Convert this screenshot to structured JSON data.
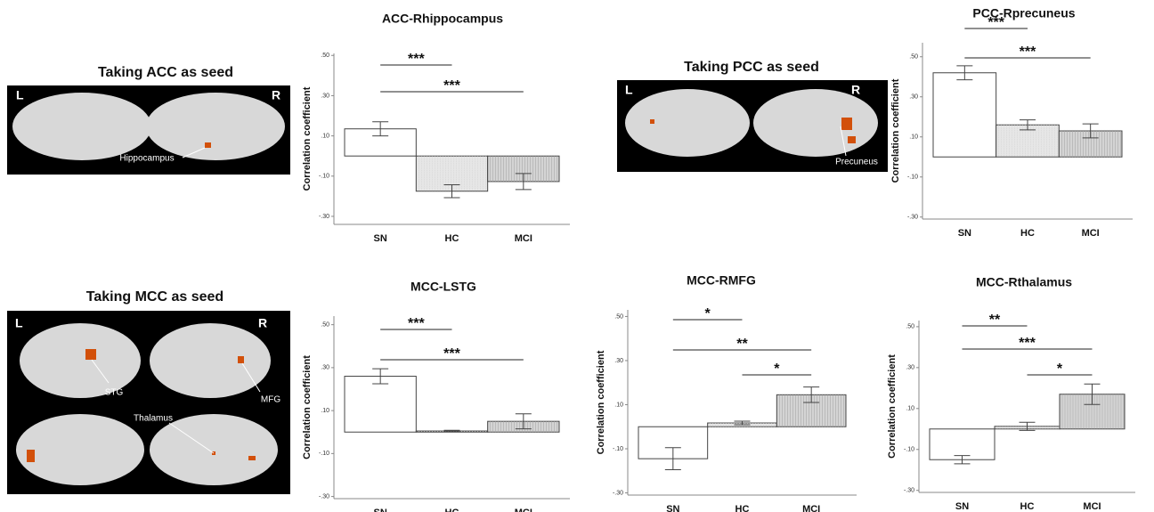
{
  "panels": [
    {
      "title": "Taking ACC as seed",
      "left": "L",
      "right": "R",
      "labels": [
        "Hippocampus"
      ]
    },
    {
      "title": "Taking PCC as seed",
      "left": "L",
      "right": "R",
      "labels": [
        "Precuneus"
      ]
    },
    {
      "title": "Taking MCC as seed",
      "left": "L",
      "right": "R",
      "labels": [
        "STG",
        "MFG",
        "Thalamus"
      ]
    }
  ],
  "chart_data": [
    {
      "type": "bar",
      "title": "ACC-Rhippocampus",
      "y_label": "Correlation coefficient",
      "categories": [
        "SN",
        "HC",
        "MCI"
      ],
      "values": [
        0.135,
        -0.175,
        -0.127
      ],
      "errors": [
        0.035,
        0.032,
        0.04
      ],
      "colors": [
        "#ffffff",
        "#e6e6e6",
        "#d4d4d4"
      ],
      "ylim": [
        -0.34,
        0.51
      ],
      "yticks": [
        {
          "value": 0.5,
          "label": ".50"
        },
        {
          "value": 0.3,
          "label": ".30"
        },
        {
          "value": 0.1,
          "label": ".10"
        },
        {
          "value": -0.1,
          "label": "-.10"
        },
        {
          "value": -0.3,
          "label": "-.30"
        }
      ],
      "annotations": [
        {
          "text": "***",
          "from": "SN",
          "to": "HC"
        },
        {
          "text": "***",
          "from": "SN",
          "to": "MCI"
        }
      ]
    },
    {
      "type": "bar",
      "title": "PCC-Rprecuneus",
      "y_label": "Correlation coefficient",
      "categories": [
        "SN",
        "HC",
        "MCI"
      ],
      "values": [
        0.42,
        0.16,
        0.13
      ],
      "errors": [
        0.035,
        0.025,
        0.035
      ],
      "colors": [
        "#ffffff",
        "#e6e6e6",
        "#d4d4d4"
      ],
      "ylim": [
        -0.31,
        0.57
      ],
      "yticks": [
        {
          "value": 0.5,
          "label": ".50"
        },
        {
          "value": 0.3,
          "label": ".30"
        },
        {
          "value": 0.1,
          "label": ".10"
        },
        {
          "value": -0.1,
          "label": "-.10"
        },
        {
          "value": -0.3,
          "label": "-.30"
        }
      ],
      "annotations": [
        {
          "text": "***",
          "from": "SN",
          "to": "HC"
        },
        {
          "text": "***",
          "from": "SN",
          "to": "MCI"
        }
      ]
    },
    {
      "type": "bar",
      "title": "MCC-LSTG",
      "y_label": "Correlation coefficient",
      "categories": [
        "SN",
        "HC",
        "MCI"
      ],
      "values": [
        0.26,
        0.005,
        0.05
      ],
      "errors": [
        0.035,
        0.003,
        0.035
      ],
      "colors": [
        "#ffffff",
        "#e6e6e6",
        "#d4d4d4"
      ],
      "ylim": [
        -0.31,
        0.54
      ],
      "yticks": [
        {
          "value": 0.5,
          "label": ".50"
        },
        {
          "value": 0.3,
          "label": ".30"
        },
        {
          "value": 0.1,
          "label": ".10"
        },
        {
          "value": -0.1,
          "label": "-.10"
        },
        {
          "value": -0.3,
          "label": "-.30"
        }
      ],
      "annotations": [
        {
          "text": "***",
          "from": "SN",
          "to": "HC"
        },
        {
          "text": "***",
          "from": "SN",
          "to": "MCI"
        }
      ]
    },
    {
      "type": "bar",
      "title": "MCC-RMFG",
      "y_label": "Correlation coefficient",
      "categories": [
        "SN",
        "HC",
        "MCI"
      ],
      "values": [
        -0.145,
        0.017,
        0.145
      ],
      "errors": [
        0.05,
        0.008,
        0.035
      ],
      "colors": [
        "#ffffff",
        "#e6e6e6",
        "#d4d4d4"
      ],
      "ylim": [
        -0.31,
        0.53
      ],
      "yticks": [
        {
          "value": 0.5,
          "label": ".50"
        },
        {
          "value": 0.3,
          "label": ".30"
        },
        {
          "value": 0.1,
          "label": ".10"
        },
        {
          "value": -0.1,
          "label": "-.10"
        },
        {
          "value": -0.3,
          "label": "-.30"
        }
      ],
      "annotations": [
        {
          "text": "*",
          "from": "SN",
          "to": "HC"
        },
        {
          "text": "**",
          "from": "SN",
          "to": "MCI"
        },
        {
          "text": "*",
          "from": "HC",
          "to": "MCI"
        }
      ]
    },
    {
      "type": "bar",
      "title": "MCC-Rthalamus",
      "y_label": "Correlation coefficient",
      "categories": [
        "SN",
        "HC",
        "MCI"
      ],
      "values": [
        -0.15,
        0.013,
        0.17
      ],
      "errors": [
        0.02,
        0.02,
        0.05
      ],
      "colors": [
        "#ffffff",
        "#e6e6e6",
        "#d4d4d4"
      ],
      "ylim": [
        -0.31,
        0.53
      ],
      "yticks": [
        {
          "value": 0.5,
          "label": ".50"
        },
        {
          "value": 0.3,
          "label": ".30"
        },
        {
          "value": 0.1,
          "label": ".10"
        },
        {
          "value": -0.1,
          "label": "-.10"
        },
        {
          "value": -0.3,
          "label": "-.30"
        }
      ],
      "annotations": [
        {
          "text": "**",
          "from": "SN",
          "to": "HC"
        },
        {
          "text": "***",
          "from": "SN",
          "to": "MCI"
        },
        {
          "text": "*",
          "from": "HC",
          "to": "MCI"
        }
      ]
    }
  ]
}
